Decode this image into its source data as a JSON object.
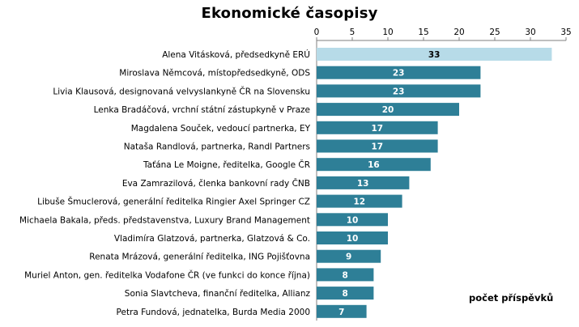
{
  "chart_data": {
    "type": "bar",
    "orientation": "horizontal",
    "title": "Ekonomické časopisy",
    "xlim": [
      0,
      35
    ],
    "xticks": [
      0,
      5,
      10,
      15,
      20,
      25,
      30,
      35
    ],
    "x_axis_position": "top",
    "grid": false,
    "unit_label": "počet příspěvků",
    "colors": {
      "highlight": "#b7dbe8",
      "bar": "#2e7f97",
      "label_dark": "#000000",
      "label_light": "#ffffff"
    },
    "categories": [
      "Alena Vitásková, předsedkyně ERÚ",
      "Miroslava Němcová, místopředsedkyně, ODS",
      "Livia Klausová, designovaná velvyslankyně ČR na Slovensku",
      "Lenka Bradáčová, vrchní státní zástupkyně v Praze",
      "Magdalena Souček, vedoucí partnerka, EY",
      "Nataša Randlová, partnerka, Randl Partners",
      "Taťána Le Moigne, ředitelka, Google ČR",
      "Eva Zamrazilová, členka bankovní rady ČNB",
      "Libuše Šmuclerová, generální ředitelka Ringier Axel Springer CZ",
      "Michaela Bakala, předs. představenstva, Luxury Brand Management",
      "Vladimíra Glatzová, partnerka, Glatzová & Co.",
      "Renata Mrázová, generální ředitelka, ING Pojišťovna",
      "Muriel Anton, gen. ředitelka Vodafone ČR (ve funkci do konce října)",
      "Sonia Slavtcheva, finanční ředitelka, Allianz",
      "Petra Fundová, jednatelka, Burda Media 2000"
    ],
    "values": [
      33,
      23,
      23,
      20,
      17,
      17,
      16,
      13,
      12,
      10,
      10,
      9,
      8,
      8,
      7
    ]
  }
}
